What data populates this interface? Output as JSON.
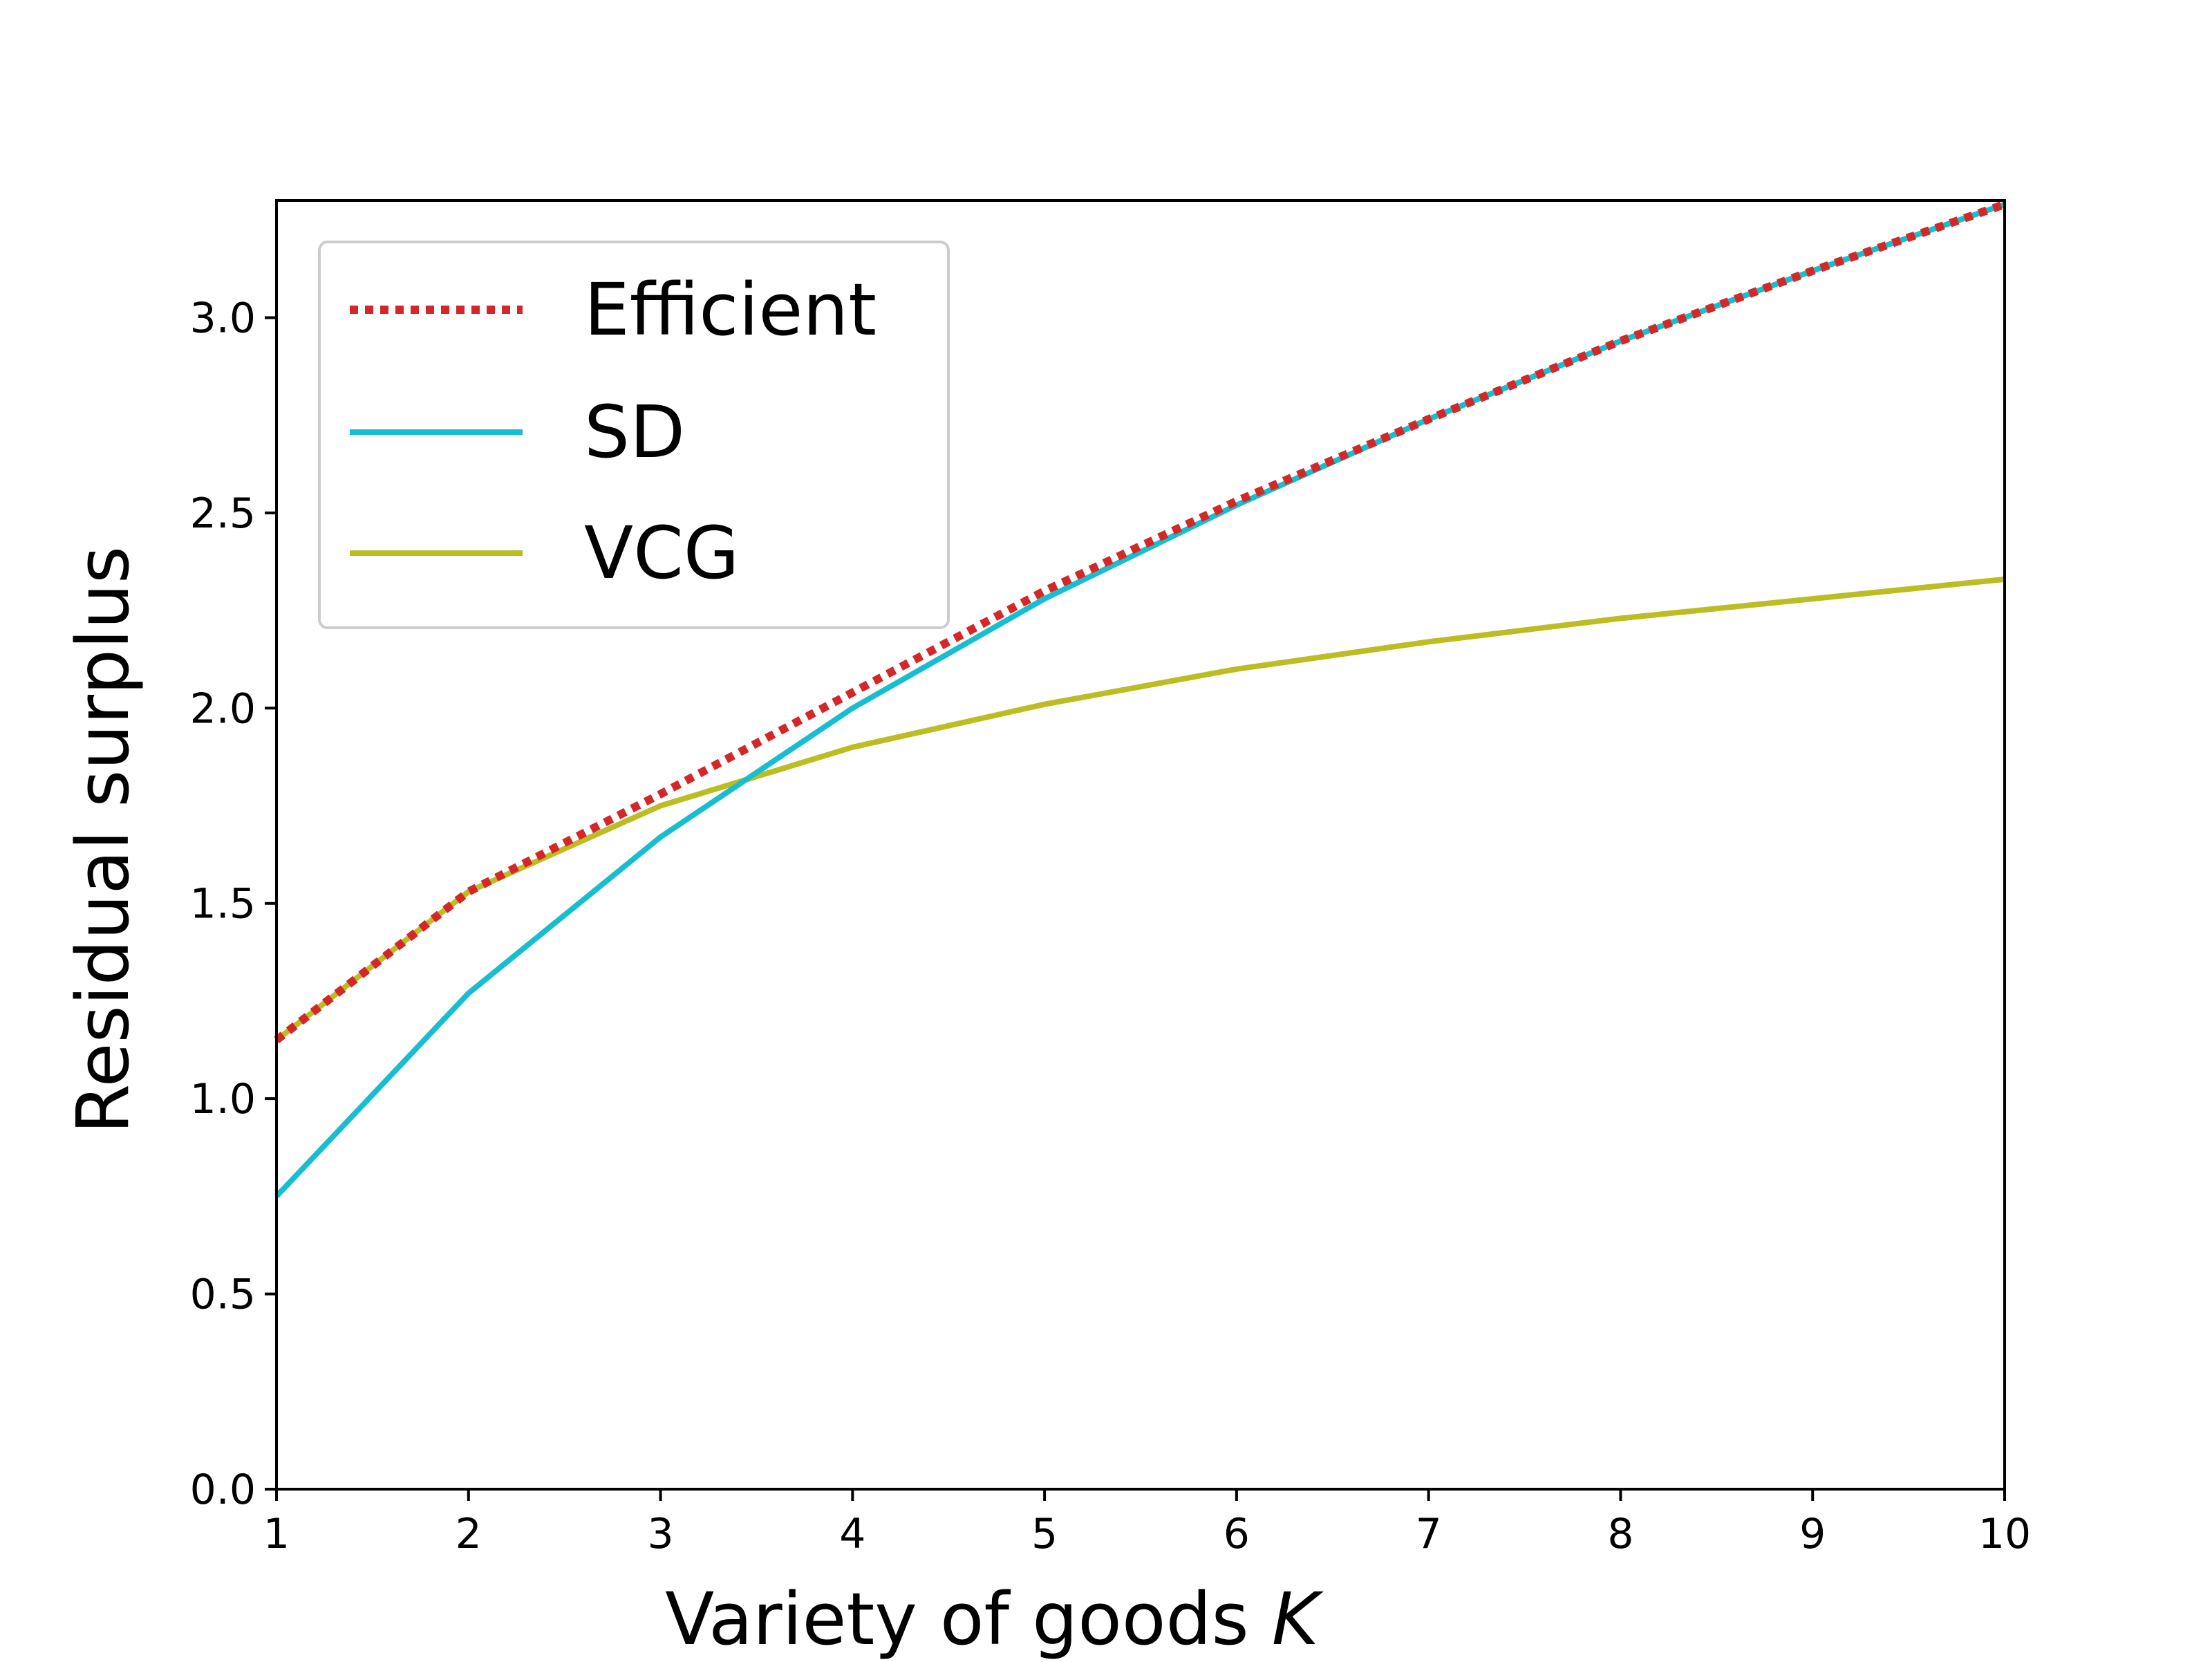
{
  "chart_data": {
    "type": "line",
    "title": "",
    "xlabel": "Variety of goods",
    "xlabel_var": "K",
    "ylabel": "Residual surplus",
    "x": [
      1,
      2,
      3,
      4,
      5,
      6,
      7,
      8,
      9,
      10
    ],
    "xlim": [
      1,
      10
    ],
    "ylim": [
      0,
      3.3
    ],
    "xticks": [
      1,
      2,
      3,
      4,
      5,
      6,
      7,
      8,
      9,
      10
    ],
    "xtick_labels": [
      "1",
      "2",
      "3",
      "4",
      "5",
      "6",
      "7",
      "8",
      "9",
      "10"
    ],
    "yticks": [
      0.0,
      0.5,
      1.0,
      1.5,
      2.0,
      2.5,
      3.0
    ],
    "ytick_labels": [
      "0.0",
      "0.5",
      "1.0",
      "1.5",
      "2.0",
      "2.5",
      "3.0"
    ],
    "grid": false,
    "legend_position": "upper-left",
    "series": [
      {
        "name": "Efficient",
        "style": "dotted",
        "color": "#d62728",
        "values": [
          1.15,
          1.53,
          1.78,
          2.04,
          2.3,
          2.53,
          2.74,
          2.94,
          3.12,
          3.29
        ]
      },
      {
        "name": "SD",
        "style": "solid",
        "color": "#17becf",
        "values": [
          0.75,
          1.27,
          1.67,
          2.0,
          2.28,
          2.52,
          2.74,
          2.94,
          3.12,
          3.29
        ]
      },
      {
        "name": "VCG",
        "style": "solid",
        "color": "#bcbd22",
        "values": [
          1.15,
          1.53,
          1.75,
          1.9,
          2.01,
          2.1,
          2.17,
          2.23,
          2.28,
          2.33
        ]
      }
    ]
  }
}
